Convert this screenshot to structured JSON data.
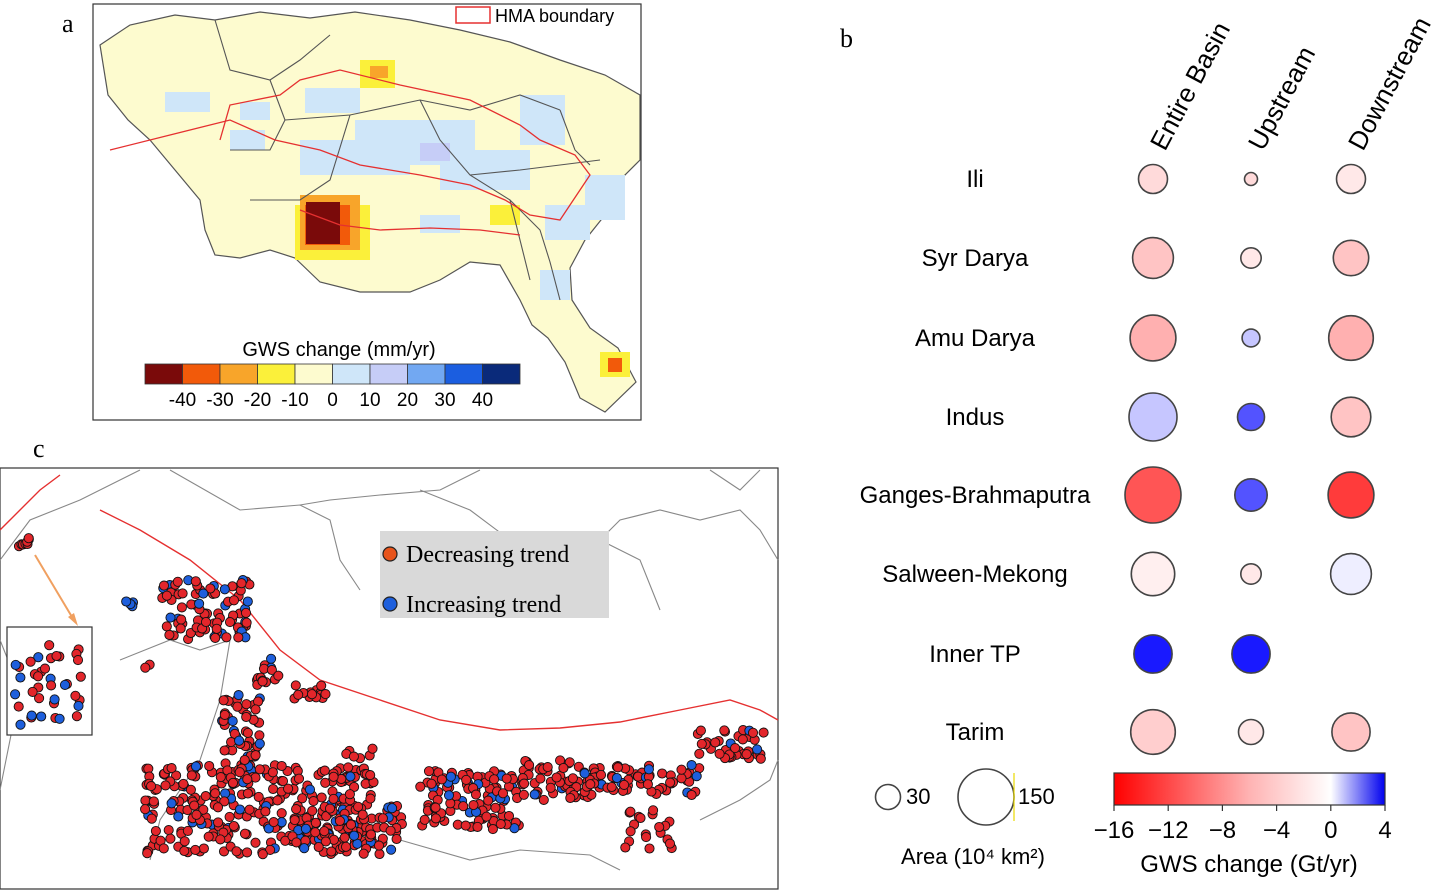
{
  "panel_a": {
    "letter": "a",
    "legend_label": "HMA boundary",
    "colorbar_title": "GWS change (mm/yr)",
    "colorbar_colors": [
      "#7a0a0a",
      "#f25a0a",
      "#f8a52a",
      "#fbf03a",
      "#fdfbcf",
      "#cfe6f9",
      "#c6cdf7",
      "#72a8f2",
      "#1b5ee0",
      "#0a2a7a"
    ],
    "colorbar_ticks": [
      "-40",
      "-30",
      "-20",
      "-10",
      "0",
      "10",
      "20",
      "30",
      "40"
    ]
  },
  "panel_c": {
    "letter": "c",
    "legend": [
      {
        "label": "Decreasing trend",
        "color": "#e8541c"
      },
      {
        "label": "Increasing trend",
        "color": "#1e5fdc"
      }
    ]
  },
  "chart_data": {
    "type": "scatter",
    "title": "",
    "letter": "b",
    "columns": [
      "Entire Basin",
      "Upstream",
      "Downstream"
    ],
    "rows": [
      "Ili",
      "Syr Darya",
      "Amu Darya",
      "Indus",
      "Ganges-Brahmaputra",
      "Salween-Mekong",
      "Inner TP",
      "Tarim"
    ],
    "series": [
      {
        "name": "Entire Basin",
        "gws_change": [
          -1,
          -2,
          -3,
          1,
          -9,
          -0.3,
          4,
          -1.5
        ],
        "area": [
          40,
          80,
          100,
          110,
          150,
          90,
          70,
          95
        ]
      },
      {
        "name": "Upstream",
        "gws_change": [
          -1,
          -0.5,
          1,
          3,
          3,
          -0.5,
          4,
          -0.5
        ],
        "area": [
          8,
          20,
          15,
          35,
          50,
          20,
          70,
          30
        ]
      },
      {
        "name": "Downstream",
        "gws_change": [
          -0.5,
          -2,
          -3,
          -2,
          -11,
          0.3,
          null,
          -2
        ],
        "area": [
          40,
          60,
          95,
          75,
          100,
          80,
          null,
          70
        ]
      }
    ],
    "size_legend": {
      "values": [
        30,
        150
      ],
      "title": "Area (10⁴ km²)"
    },
    "colorbar": {
      "title": "GWS change (Gt/yr)",
      "range": [
        -16,
        4
      ],
      "ticks": [
        "−16",
        "−12",
        "−8",
        "−4",
        "0",
        "4"
      ],
      "colors": [
        "#ff0000",
        "#ffffff",
        "#0000ff"
      ]
    }
  }
}
